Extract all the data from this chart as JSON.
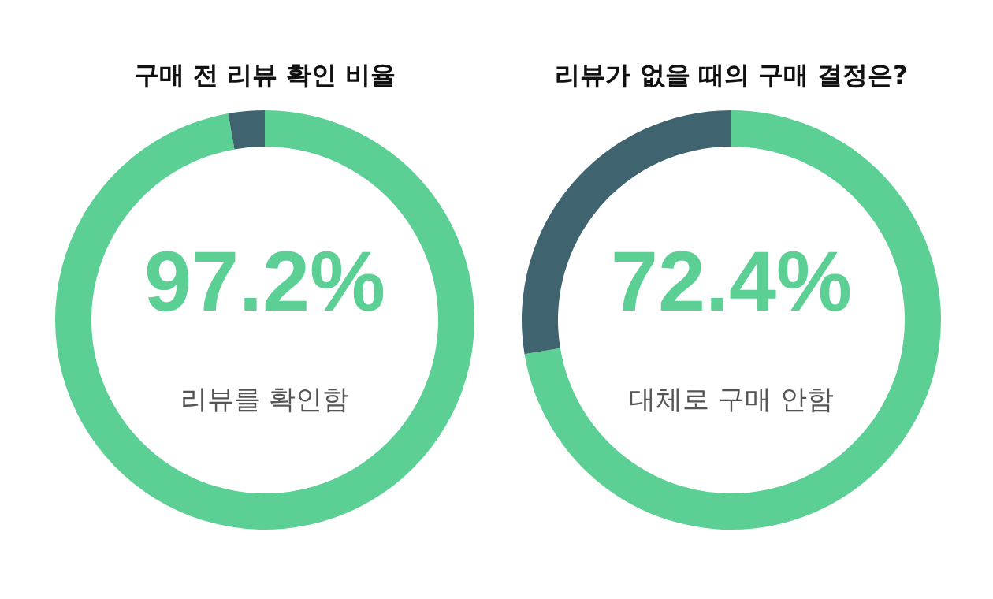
{
  "chart_data": [
    {
      "type": "donut",
      "title": "구매 전 리뷰 확인 비율",
      "categories": [
        "리뷰를 확인함",
        null
      ],
      "values": [
        97.2,
        2.8
      ],
      "colors": [
        "#5ccf94",
        "#3f6470"
      ],
      "value_labels": [
        "97.2%",
        null
      ]
    },
    {
      "type": "donut",
      "title": "리뷰가 없을 때의 구매 결정은?",
      "categories": [
        "대체로 구매 안함",
        null
      ],
      "values": [
        72.4,
        27.6
      ],
      "colors": [
        "#5ccf94",
        "#3f6470"
      ],
      "value_labels": [
        "72.4%",
        null
      ]
    }
  ]
}
